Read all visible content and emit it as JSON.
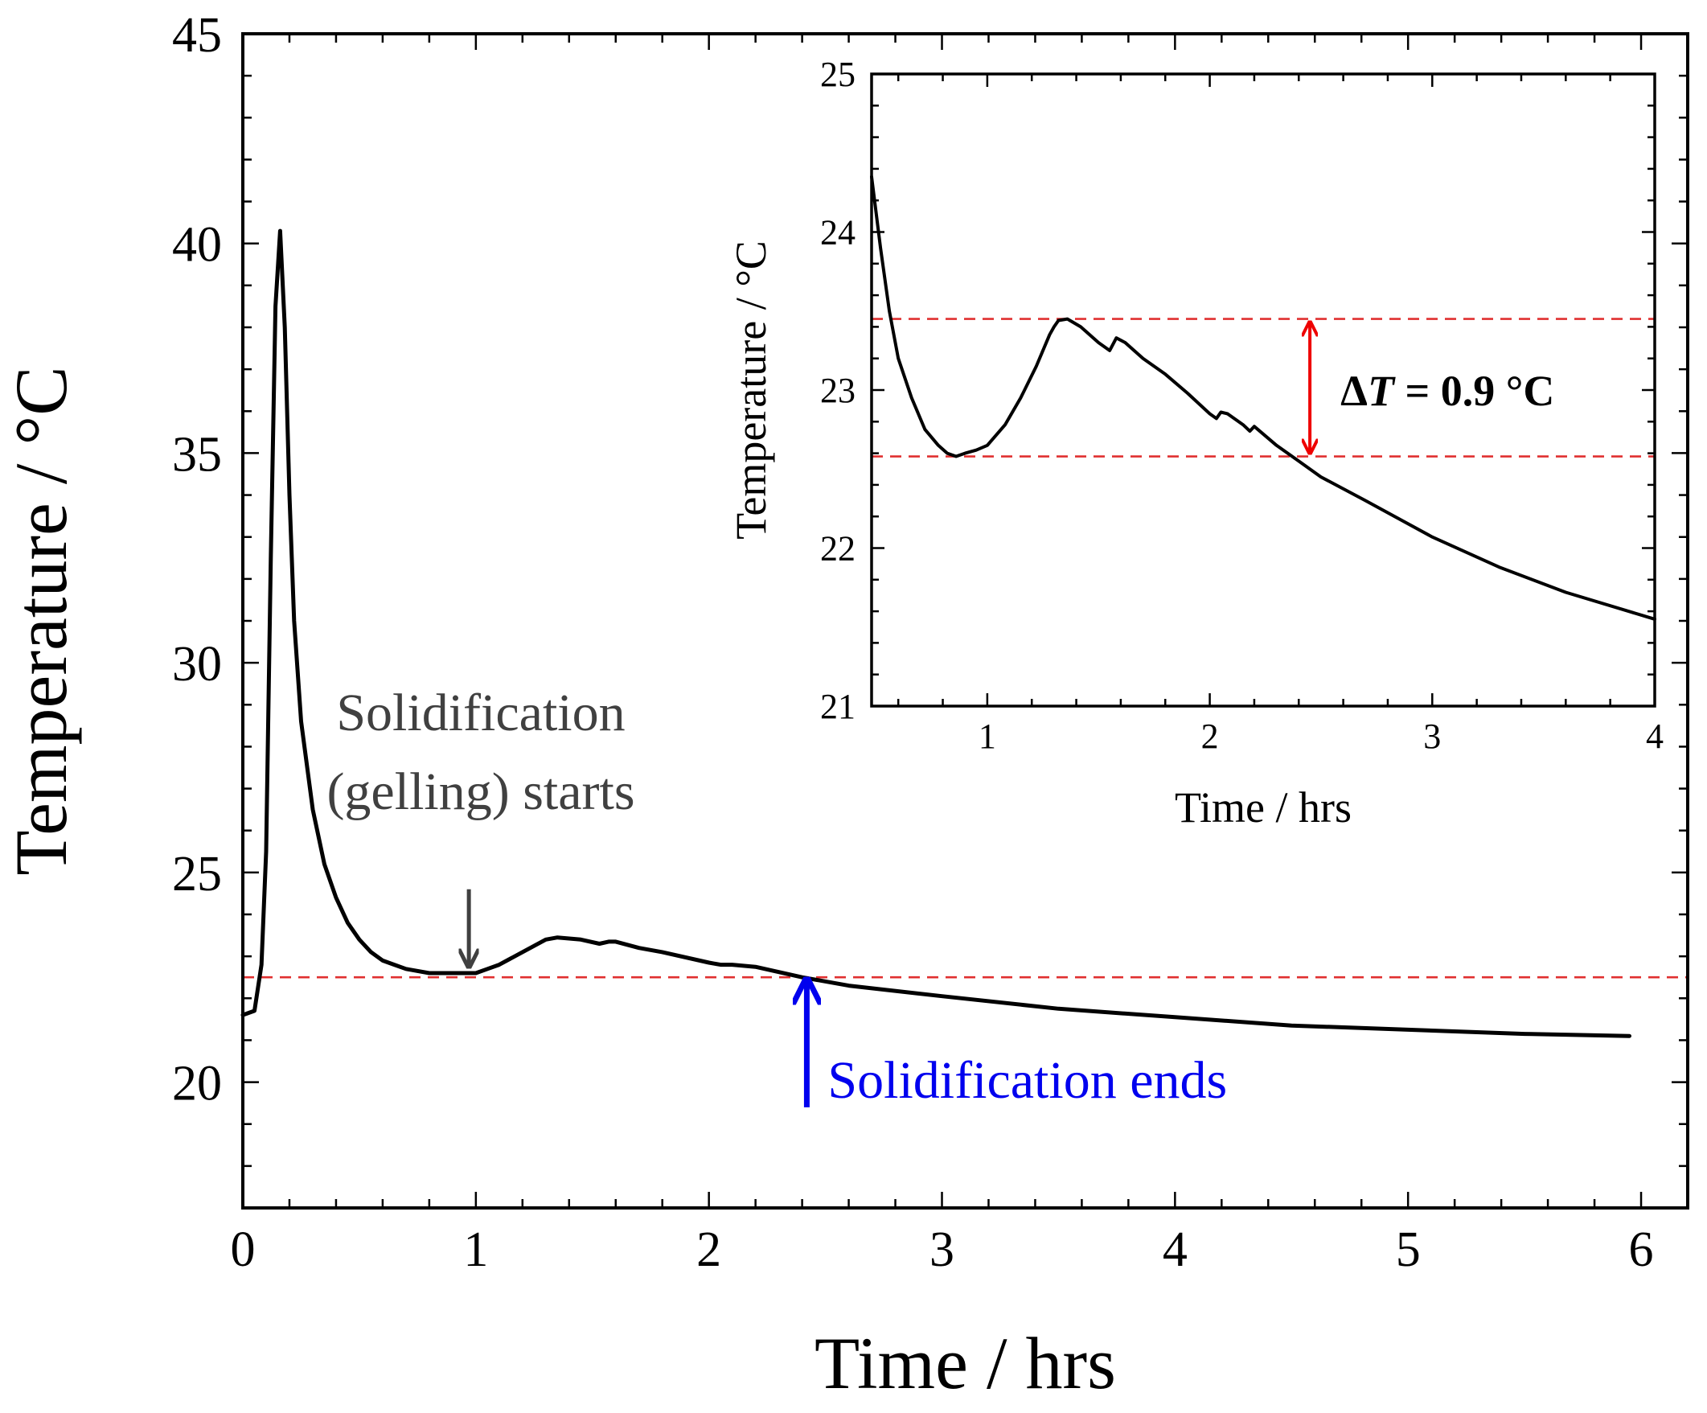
{
  "chart_data": [
    {
      "id": "main",
      "type": "line",
      "xlabel": "Time / hrs",
      "ylabel": "Temperature / °C",
      "xlim": [
        0,
        6.2
      ],
      "ylim": [
        17.0,
        45
      ],
      "x_ticks": [
        0,
        1,
        2,
        3,
        4,
        5,
        6
      ],
      "y_ticks": [
        20,
        25,
        30,
        35,
        40,
        45
      ],
      "x_minor_step": 0.2,
      "y_minor_step": 1,
      "series": [
        {
          "color": "#000000",
          "x": [
            0.0,
            0.05,
            0.08,
            0.1,
            0.12,
            0.14,
            0.16,
            0.18,
            0.2,
            0.22,
            0.25,
            0.3,
            0.35,
            0.4,
            0.45,
            0.5,
            0.55,
            0.6,
            0.65,
            0.7,
            0.8,
            0.9,
            1.0,
            1.05,
            1.1,
            1.2,
            1.3,
            1.35,
            1.45,
            1.53,
            1.57,
            1.6,
            1.7,
            1.8,
            2.0,
            2.05,
            2.1,
            2.2,
            2.4,
            2.6,
            3.0,
            3.5,
            4.0,
            4.5,
            5.0,
            5.5,
            5.95
          ],
          "y": [
            21.6,
            21.7,
            22.8,
            25.5,
            32.5,
            38.5,
            40.3,
            38.0,
            34.0,
            31.0,
            28.6,
            26.5,
            25.2,
            24.4,
            23.8,
            23.4,
            23.1,
            22.9,
            22.8,
            22.7,
            22.6,
            22.6,
            22.6,
            22.7,
            22.8,
            23.1,
            23.4,
            23.45,
            23.4,
            23.3,
            23.35,
            23.35,
            23.2,
            23.1,
            22.85,
            22.8,
            22.8,
            22.75,
            22.5,
            22.3,
            22.05,
            21.75,
            21.55,
            21.35,
            21.25,
            21.15,
            21.1
          ]
        }
      ],
      "reference_line": {
        "y": 22.5,
        "color": "#e03030",
        "style": "dashed"
      },
      "annotations": [
        {
          "lines": [
            "Solidification",
            "(gelling) starts"
          ],
          "color": "#404040",
          "arrow_x": 0.97,
          "arrow_from_y": 24.6,
          "arrow_to_y": 22.75
        },
        {
          "lines": [
            "Solidification ends"
          ],
          "color": "#0000ee",
          "arrow_x": 2.42,
          "arrow_from_y": 19.4,
          "arrow_to_y": 22.45
        }
      ]
    },
    {
      "id": "inset",
      "type": "line",
      "xlabel": "Time / hrs",
      "ylabel": "Temperature / °C",
      "xlim": [
        0.48,
        4.0
      ],
      "ylim": [
        21,
        25
      ],
      "x_ticks": [
        1,
        2,
        3,
        4
      ],
      "y_ticks": [
        21,
        22,
        23,
        24,
        25
      ],
      "x_minor_step": 0.2,
      "y_minor_step": 0.2,
      "series": [
        {
          "color": "#000000",
          "x": [
            0.48,
            0.52,
            0.56,
            0.6,
            0.66,
            0.72,
            0.78,
            0.82,
            0.86,
            0.9,
            0.95,
            1.0,
            1.08,
            1.15,
            1.22,
            1.28,
            1.3,
            1.32,
            1.36,
            1.42,
            1.5,
            1.55,
            1.58,
            1.62,
            1.7,
            1.8,
            1.9,
            2.0,
            2.03,
            2.05,
            2.08,
            2.15,
            2.18,
            2.2,
            2.3,
            2.4,
            2.5,
            2.7,
            3.0,
            3.3,
            3.6,
            4.0
          ],
          "y": [
            24.35,
            23.9,
            23.5,
            23.2,
            22.95,
            22.75,
            22.65,
            22.6,
            22.58,
            22.6,
            22.62,
            22.65,
            22.78,
            22.95,
            23.15,
            23.35,
            23.4,
            23.44,
            23.45,
            23.4,
            23.3,
            23.25,
            23.33,
            23.3,
            23.2,
            23.1,
            22.98,
            22.85,
            22.82,
            22.86,
            22.85,
            22.78,
            22.74,
            22.77,
            22.65,
            22.55,
            22.45,
            22.3,
            22.07,
            21.88,
            21.72,
            21.55
          ]
        }
      ],
      "reference_lines": [
        {
          "y": 23.45,
          "color": "#e03030",
          "style": "dashed"
        },
        {
          "y": 22.58,
          "color": "#e03030",
          "style": "dashed"
        }
      ],
      "delta_arrow": {
        "x": 2.45,
        "y_top": 23.45,
        "y_bottom": 22.58,
        "color": "#ee0000"
      },
      "delta_label": {
        "symbol": "Δ",
        "variable": "T",
        "value_text": " = 0.9 °C"
      }
    }
  ]
}
